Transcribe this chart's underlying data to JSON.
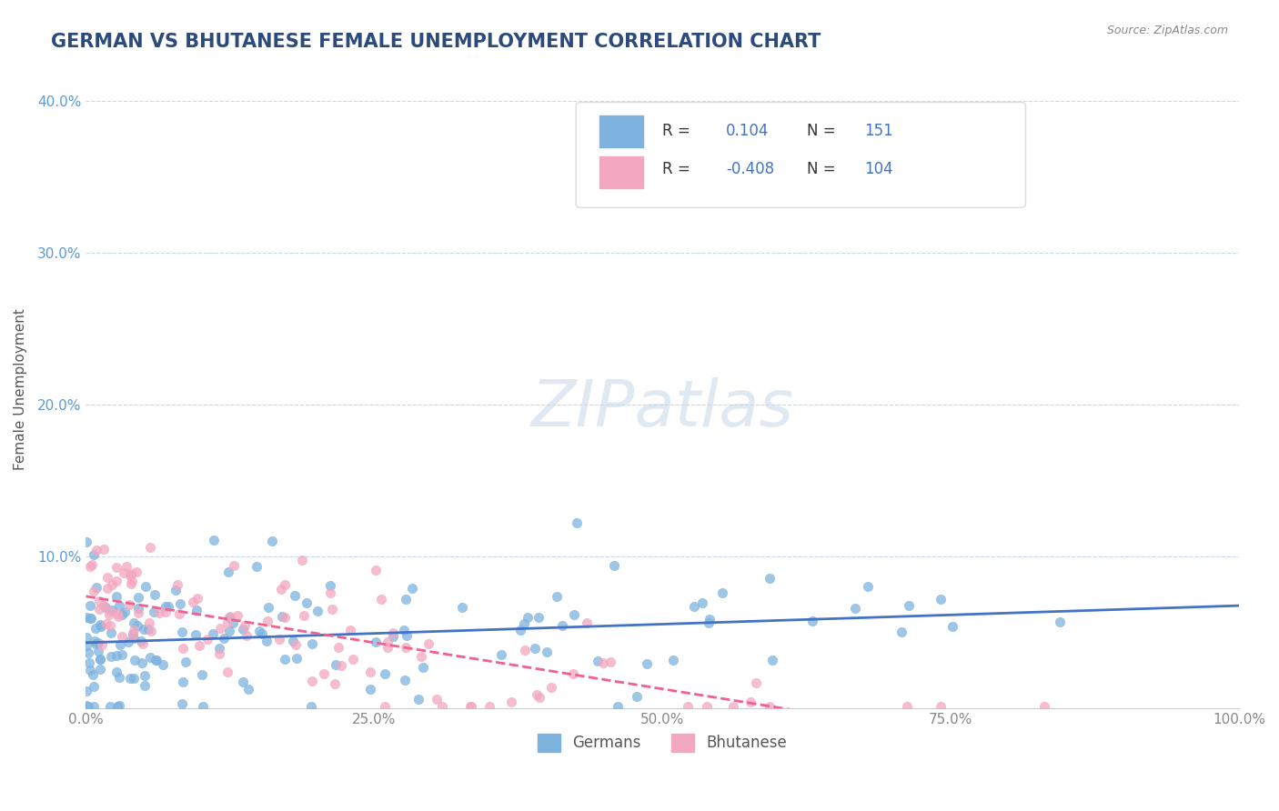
{
  "title": "GERMAN VS BHUTANESE FEMALE UNEMPLOYMENT CORRELATION CHART",
  "source_text": "Source: ZipAtlas.com",
  "ylabel": "Female Unemployment",
  "xlabel": "",
  "xlim": [
    0,
    1
  ],
  "ylim": [
    0,
    0.42
  ],
  "yticks": [
    0,
    0.1,
    0.2,
    0.3,
    0.4
  ],
  "ytick_labels": [
    "",
    "10.0%",
    "20.0%",
    "30.0%",
    "40.0%"
  ],
  "xticks": [
    0,
    0.25,
    0.5,
    0.75,
    1.0
  ],
  "xtick_labels": [
    "0.0%",
    "25.0%",
    "50.0%",
    "75.0%",
    "100.0%"
  ],
  "german_color": "#7eb3e0",
  "bhutanese_color": "#f4a7c0",
  "german_line_color": "#4472c4",
  "bhutanese_line_color": "#f06090",
  "legend_german_label": "Germans",
  "legend_bhutanese_label": "Bhutanese",
  "r_german": 0.104,
  "n_german": 151,
  "r_bhutanese": -0.408,
  "n_bhutanese": 104,
  "watermark": "ZIPatlas",
  "background_color": "#ffffff",
  "grid_color": "#c8d8e8",
  "title_color": "#2c4a7c",
  "title_fontsize": 15,
  "axis_label_color": "#555555",
  "tick_color": "#aaaaaa",
  "german_alpha": 0.75,
  "bhutanese_alpha": 0.75,
  "german_scatter_seed": 42,
  "bhutanese_scatter_seed": 77
}
